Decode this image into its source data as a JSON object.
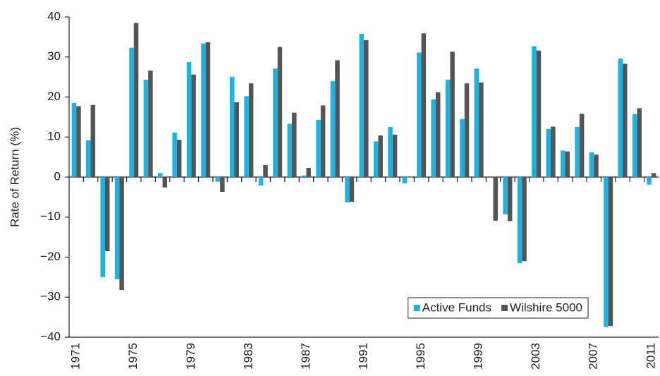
{
  "chart_data": {
    "type": "bar",
    "y_label": "Rate of Return (%)",
    "categories": [
      "1971",
      null,
      null,
      null,
      "1975",
      null,
      null,
      null,
      "1979",
      null,
      null,
      null,
      "1983",
      null,
      null,
      null,
      "1987",
      null,
      null,
      null,
      "1991",
      null,
      null,
      null,
      "1995",
      null,
      null,
      null,
      "1999",
      null,
      null,
      null,
      "2003",
      null,
      null,
      null,
      "2007",
      null,
      null,
      null,
      "2011"
    ],
    "series": [
      {
        "name": "Active Funds",
        "color": "#19b4e4",
        "values": [
          18.5,
          9.2,
          -25,
          -25.5,
          32.3,
          24.3,
          1.0,
          11.1,
          28.7,
          33.4,
          -1.2,
          25.0,
          20.2,
          -2.1,
          27.1,
          13.3,
          0.4,
          14.3,
          24.0,
          -6.3,
          35.8,
          8.9,
          12.5,
          -1.6,
          31.1,
          19.4,
          24.3,
          14.5,
          27.1,
          0,
          -9.3,
          -21.5,
          32.7,
          12.0,
          6.6,
          12.5,
          6.2,
          -37.5,
          29.6,
          15.7,
          -1.9
        ]
      },
      {
        "name": "Wilshire 5000",
        "color": "#555555",
        "values": [
          17.7,
          18.0,
          -18.5,
          -28.2,
          38.5,
          26.6,
          -2.6,
          9.3,
          25.6,
          33.7,
          -3.7,
          18.7,
          23.4,
          3.0,
          32.5,
          16.1,
          2.3,
          17.9,
          29.2,
          -6.2,
          34.2,
          10.4,
          10.6,
          -0.1,
          35.9,
          21.2,
          31.3,
          23.4,
          23.6,
          -10.9,
          -11.0,
          -21.0,
          31.6,
          12.6,
          6.4,
          15.8,
          5.6,
          -37.2,
          28.3,
          17.2,
          1.0
        ]
      }
    ],
    "ylim": [
      -40,
      40
    ],
    "yticks": [
      {
        "value": -40,
        "label": "−40"
      },
      {
        "value": -30,
        "label": "−30"
      },
      {
        "value": -20,
        "label": "−20"
      },
      {
        "value": -10,
        "label": "−10"
      },
      0,
      10,
      20,
      30,
      40
    ],
    "legend": "lower right"
  }
}
